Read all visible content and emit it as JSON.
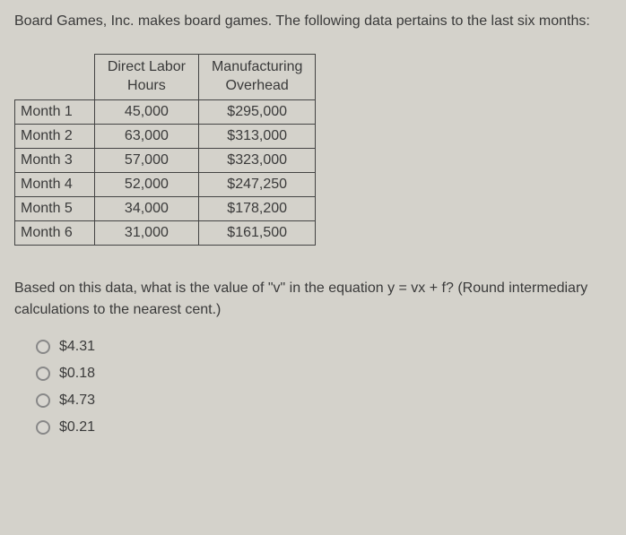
{
  "question": {
    "intro": "Board Games, Inc. makes board games. The following data pertains to the last six months:",
    "followup": "Based on this data, what is the value of \"v\" in the equation y = vx + f? (Round intermediary calculations to the nearest cent.)"
  },
  "table": {
    "headers": {
      "col1": "Direct Labor Hours",
      "col2": "Manufacturing Overhead"
    },
    "rows": [
      {
        "label": "Month 1",
        "hours": "45,000",
        "overhead": "$295,000"
      },
      {
        "label": "Month 2",
        "hours": "63,000",
        "overhead": "$313,000"
      },
      {
        "label": "Month 3",
        "hours": "57,000",
        "overhead": "$323,000"
      },
      {
        "label": "Month 4",
        "hours": "52,000",
        "overhead": "$247,250"
      },
      {
        "label": "Month 5",
        "hours": "34,000",
        "overhead": "$178,200"
      },
      {
        "label": "Month 6",
        "hours": "31,000",
        "overhead": "$161,500"
      }
    ]
  },
  "options": {
    "a": "$4.31",
    "b": "$0.18",
    "c": "$4.73",
    "d": "$0.21"
  },
  "colors": {
    "background": "#d4d2cb",
    "text": "#3a3a3a",
    "border": "#444444",
    "radio_border": "#888888"
  }
}
